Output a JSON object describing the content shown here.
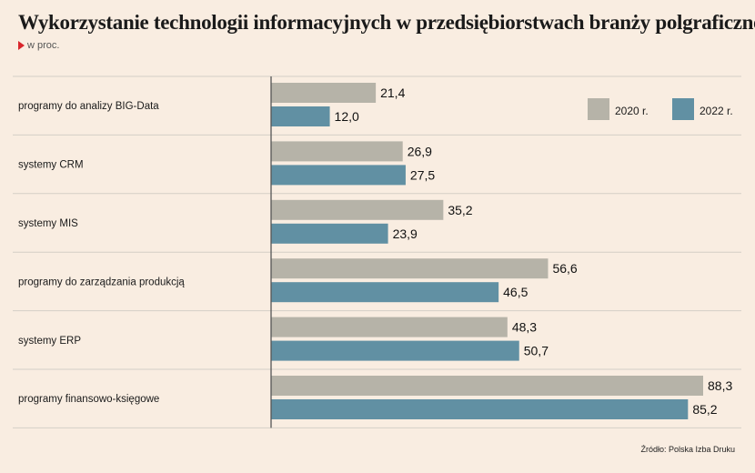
{
  "title": "Wykorzystanie technologii informacyjnych w przedsiębiorstwach branży polgraficznej",
  "subtitle": "w proc.",
  "source": "Źródło: Polska Izba Druku",
  "colors": {
    "2020": "#b6b3a8",
    "2022": "#6190a3",
    "background": "#f9ede1"
  },
  "chart_data": {
    "type": "bar",
    "orientation": "horizontal",
    "categories": [
      "programy do analizy BIG-Data",
      "systemy CRM",
      "systemy MIS",
      "programy do zarządzania produkcją",
      "systemy ERP",
      "programy finansowo-księgowe"
    ],
    "series": [
      {
        "name": "2020 r.",
        "values": [
          21.4,
          26.9,
          35.2,
          56.6,
          48.3,
          88.3
        ],
        "labels": [
          "21,4",
          "26,9",
          "35,2",
          "56,6",
          "48,3",
          "88,3"
        ]
      },
      {
        "name": "2022 r.",
        "values": [
          12.0,
          27.5,
          23.9,
          46.5,
          50.7,
          85.2
        ],
        "labels": [
          "12,0",
          "27,5",
          "23,9",
          "46,5",
          "50,7",
          "85,2"
        ]
      }
    ],
    "xlim": [
      0,
      90
    ],
    "legend": "top-right",
    "grid": false
  }
}
